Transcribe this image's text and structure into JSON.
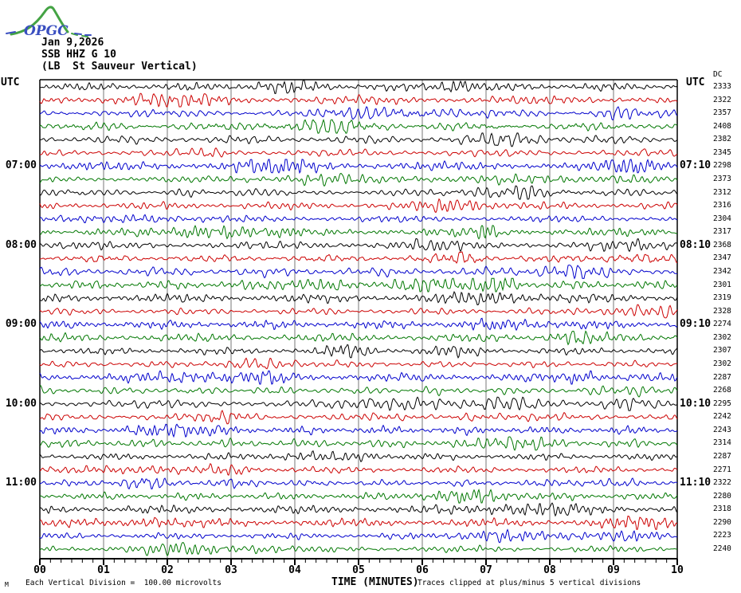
{
  "logo": {
    "text": "OPGC"
  },
  "header": {
    "date": "Jan 9,2026",
    "station": "SSB HHZ G 10",
    "location": "(LB  St Sauveur Vertical)"
  },
  "labels": {
    "utc_left": "UTC",
    "utc_right": "UTC",
    "dc_header": "DC",
    "time_axis": "TIME (MINUTES)"
  },
  "footer": {
    "micro_mark": "M",
    "division_note": "Each Vertical Division =  100.00 microvolts",
    "clip_note": "Traces clipped at plus/minus 5 vertical divisions"
  },
  "colors": {
    "black": "#000000",
    "red": "#cc0000",
    "blue": "#0000cc",
    "green": "#007700",
    "grid": "#777777",
    "frame": "#000000",
    "logo_green": "#44a344",
    "logo_blue": "#3a4fc0"
  },
  "chart_data": {
    "type": "line",
    "subtype": "helicorder-seismogram",
    "title": "SSB HHZ G 10",
    "xlabel": "TIME (MINUTES)",
    "x_range": [
      0,
      10
    ],
    "x_tick_labels": [
      "00",
      "01",
      "02",
      "03",
      "04",
      "05",
      "06",
      "07",
      "08",
      "09",
      "10"
    ],
    "minor_ticks_per_minute": 6,
    "grid": "vertical-minute-lines",
    "row_minutes_span": 10,
    "rows": [
      {
        "color": "black",
        "dc": "2333",
        "left": "",
        "right": ""
      },
      {
        "color": "red",
        "dc": "2322",
        "left": "",
        "right": ""
      },
      {
        "color": "blue",
        "dc": "2357",
        "left": "",
        "right": ""
      },
      {
        "color": "green",
        "dc": "2408",
        "left": "",
        "right": ""
      },
      {
        "color": "black",
        "dc": "2382",
        "left": "",
        "right": ""
      },
      {
        "color": "red",
        "dc": "2345",
        "left": "",
        "right": ""
      },
      {
        "color": "blue",
        "dc": "2298",
        "left": "07:00",
        "right": "07:10"
      },
      {
        "color": "green",
        "dc": "2373",
        "left": "",
        "right": ""
      },
      {
        "color": "black",
        "dc": "2312",
        "left": "",
        "right": ""
      },
      {
        "color": "red",
        "dc": "2316",
        "left": "",
        "right": ""
      },
      {
        "color": "blue",
        "dc": "2304",
        "left": "",
        "right": ""
      },
      {
        "color": "green",
        "dc": "2317",
        "left": "",
        "right": ""
      },
      {
        "color": "black",
        "dc": "2368",
        "left": "08:00",
        "right": "08:10"
      },
      {
        "color": "red",
        "dc": "2347",
        "left": "",
        "right": ""
      },
      {
        "color": "blue",
        "dc": "2342",
        "left": "",
        "right": ""
      },
      {
        "color": "green",
        "dc": "2301",
        "left": "",
        "right": ""
      },
      {
        "color": "black",
        "dc": "2319",
        "left": "",
        "right": ""
      },
      {
        "color": "red",
        "dc": "2328",
        "left": "",
        "right": ""
      },
      {
        "color": "blue",
        "dc": "2274",
        "left": "09:00",
        "right": "09:10"
      },
      {
        "color": "green",
        "dc": "2302",
        "left": "",
        "right": ""
      },
      {
        "color": "black",
        "dc": "2307",
        "left": "",
        "right": ""
      },
      {
        "color": "red",
        "dc": "2302",
        "left": "",
        "right": ""
      },
      {
        "color": "blue",
        "dc": "2287",
        "left": "",
        "right": ""
      },
      {
        "color": "green",
        "dc": "2268",
        "left": "",
        "right": ""
      },
      {
        "color": "black",
        "dc": "2295",
        "left": "10:00",
        "right": "10:10"
      },
      {
        "color": "red",
        "dc": "2242",
        "left": "",
        "right": ""
      },
      {
        "color": "blue",
        "dc": "2243",
        "left": "",
        "right": ""
      },
      {
        "color": "green",
        "dc": "2314",
        "left": "",
        "right": ""
      },
      {
        "color": "black",
        "dc": "2287",
        "left": "",
        "right": ""
      },
      {
        "color": "red",
        "dc": "2271",
        "left": "",
        "right": ""
      },
      {
        "color": "blue",
        "dc": "2322",
        "left": "11:00",
        "right": "11:10"
      },
      {
        "color": "green",
        "dc": "2280",
        "left": "",
        "right": ""
      },
      {
        "color": "black",
        "dc": "2318",
        "left": "",
        "right": ""
      },
      {
        "color": "red",
        "dc": "2290",
        "left": "",
        "right": ""
      },
      {
        "color": "blue",
        "dc": "2223",
        "left": "",
        "right": ""
      },
      {
        "color": "green",
        "dc": "2240",
        "left": "",
        "right": ""
      }
    ]
  }
}
